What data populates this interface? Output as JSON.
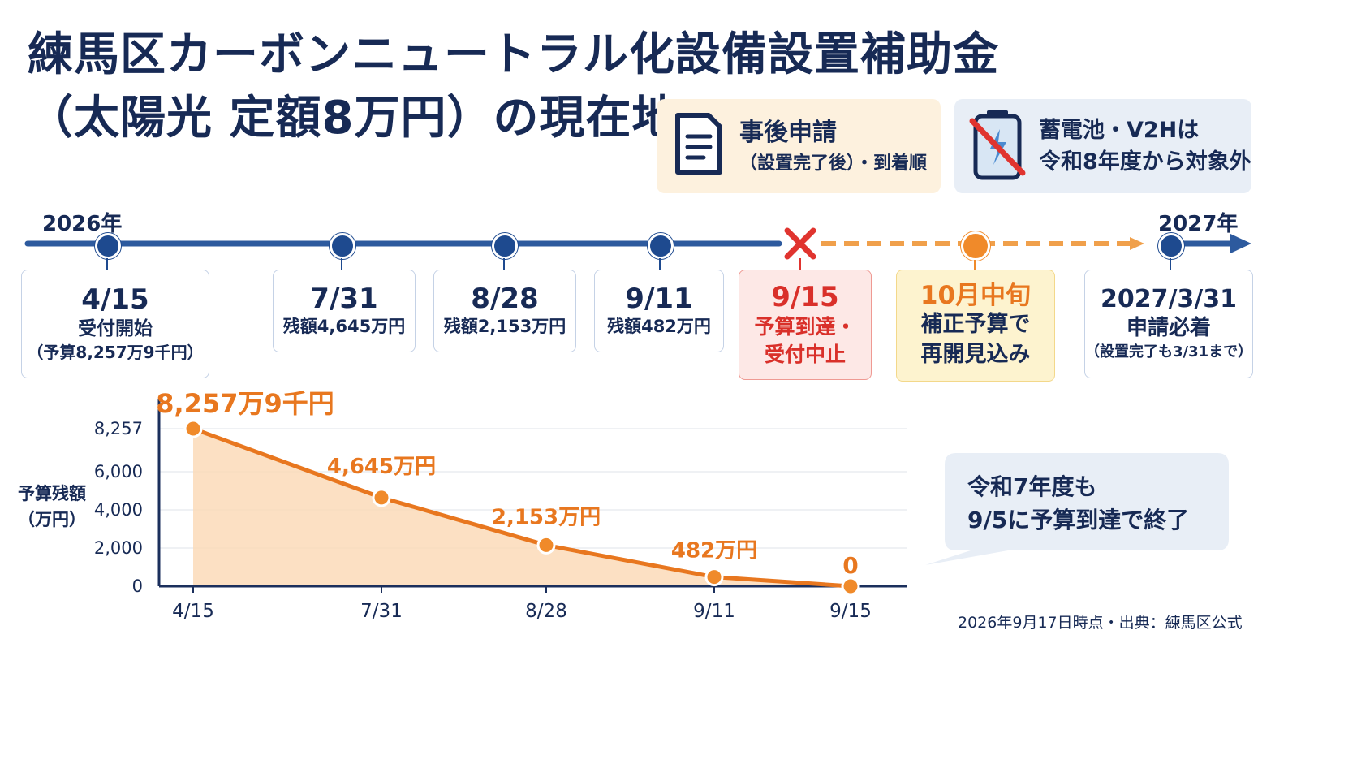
{
  "title": {
    "line1": "練馬区カーボンニュートラル化設備設置補助金",
    "line2": "（太陽光 定額8万円）の現在地"
  },
  "cards": {
    "application": {
      "line1": "事後申請",
      "line2": "（設置完了後）・到着順",
      "icon": "document-icon"
    },
    "battery": {
      "line1": "蓄電池・V2Hは",
      "line2": "令和8年度から対象外",
      "icon": "battery-crossed-icon"
    }
  },
  "timeline": {
    "start_year": "2026年",
    "end_year": "2027年",
    "events": [
      {
        "date": "4/15",
        "line1": "受付開始",
        "line2": "（予算8,257万9千円）"
      },
      {
        "date": "7/31",
        "line1": "残額4,645万円"
      },
      {
        "date": "8/28",
        "line1": "残額2,153万円"
      },
      {
        "date": "9/11",
        "line1": "残額482万円"
      },
      {
        "date": "9/15",
        "line1": "予算到達・",
        "line2": "受付中止"
      },
      {
        "date": "10月中旬",
        "line1": "補正予算で",
        "line2": "再開見込み"
      },
      {
        "date": "2027/3/31",
        "line1": "申請必着",
        "line2": "（設置完了も3/31まで）"
      }
    ]
  },
  "chart_data": {
    "type": "area",
    "x": [
      "4/15",
      "7/31",
      "8/28",
      "9/11",
      "9/15"
    ],
    "values": [
      8257.9,
      4645,
      2153,
      482,
      0
    ],
    "data_labels": [
      "8,257万9千円",
      "4,645万円",
      "2,153万円",
      "482万円",
      "0"
    ],
    "ylabel": "予算残額（万円）",
    "yticks": [
      "8,257",
      "6,000",
      "4,000",
      "2,000",
      "0"
    ],
    "ylim": [
      0,
      8257.9
    ],
    "grid": true,
    "colors": {
      "line": "#e8771f",
      "fill": "#fbd8b4",
      "axis": "#1b2f5c"
    }
  },
  "note": {
    "line1": "令和7年度も",
    "line2": "9/5に予算到達で終了"
  },
  "source": "2026年9月17日時点・出典：練馬区公式",
  "colors": {
    "navy": "#172a55",
    "blue": "#1e4a8f",
    "orange": "#e8771f",
    "red": "#e0342f"
  }
}
